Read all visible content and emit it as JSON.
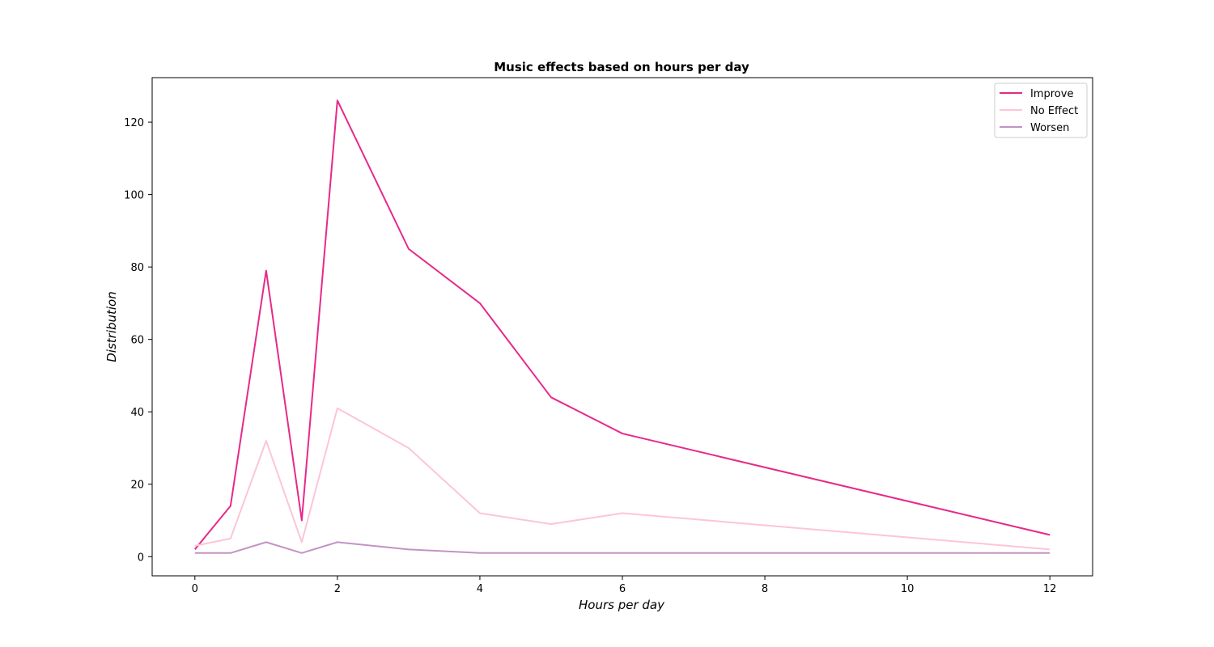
{
  "chart_data": {
    "type": "line",
    "title": "Music effects based on hours per day",
    "xlabel": "Hours per day",
    "ylabel": "Distribution",
    "x": [
      0,
      0.5,
      1,
      1.5,
      2,
      3,
      4,
      5,
      6,
      12
    ],
    "xlim": [
      -0.6,
      12.6
    ],
    "ylim": [
      -5.3,
      132.3
    ],
    "xticks": [
      0,
      2,
      4,
      6,
      8,
      10,
      12
    ],
    "yticks": [
      0,
      20,
      40,
      60,
      80,
      100,
      120
    ],
    "grid": false,
    "legend_position": "top-right",
    "series": [
      {
        "name": "Improve",
        "color": "#e7298a",
        "values": [
          2,
          14,
          79,
          10,
          126,
          85,
          70,
          44,
          34,
          6
        ]
      },
      {
        "name": "No Effect",
        "color": "#fcc5d8",
        "values": [
          3,
          5,
          32,
          4,
          41,
          30,
          12,
          9,
          12,
          2
        ]
      },
      {
        "name": "Worsen",
        "color": "#c393c4",
        "values": [
          1,
          1,
          4,
          1,
          4,
          2,
          1,
          1,
          1,
          1
        ]
      }
    ]
  }
}
